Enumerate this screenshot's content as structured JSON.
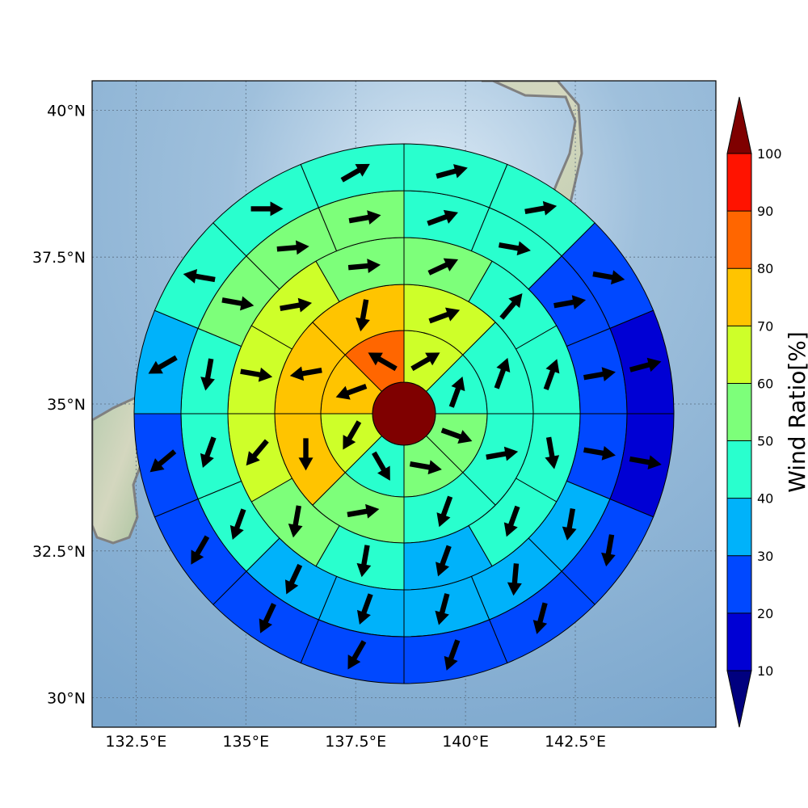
{
  "chart_data": {
    "type": "polar_grid_map",
    "map_extent": {
      "lon": [
        131.5,
        145.7
      ],
      "lat": [
        29.5,
        40.5
      ]
    },
    "lon_ticks": [
      {
        "value": 132.5,
        "label": "132.5°E"
      },
      {
        "value": 135.0,
        "label": "135°E"
      },
      {
        "value": 137.5,
        "label": "137.5°E"
      },
      {
        "value": 140.0,
        "label": "140°E"
      },
      {
        "value": 142.5,
        "label": "142.5°E"
      }
    ],
    "lat_ticks": [
      {
        "value": 30.0,
        "label": "30°N"
      },
      {
        "value": 32.5,
        "label": "32.5°N"
      },
      {
        "value": 35.0,
        "label": "35°N"
      },
      {
        "value": 37.5,
        "label": "37.5°N"
      },
      {
        "value": 40.0,
        "label": "40°N"
      }
    ],
    "grid": true,
    "center_cell": {
      "value": 100
    },
    "rings": [
      {
        "sectors": 8,
        "values": [
          65,
          45,
          55,
          55,
          45,
          65,
          75,
          85
        ]
      },
      {
        "sectors": 8,
        "values": [
          65,
          45,
          45,
          45,
          55,
          75,
          75,
          75
        ]
      },
      {
        "sectors": 12,
        "values": [
          55,
          45,
          45,
          45,
          45,
          35,
          45,
          55,
          65,
          65,
          65,
          55
        ]
      },
      {
        "sectors": 16,
        "values": [
          45,
          45,
          25,
          25,
          25,
          35,
          35,
          35,
          35,
          35,
          45,
          45,
          45,
          55,
          55,
          55
        ]
      },
      {
        "sectors": 16,
        "values": [
          45,
          45,
          25,
          15,
          15,
          25,
          25,
          25,
          25,
          25,
          25,
          25,
          35,
          45,
          45,
          45
        ]
      }
    ],
    "wind_arrows": [
      [
        60,
        20,
        110,
        100,
        150,
        210,
        250,
        300
      ],
      [
        70,
        20,
        80,
        200,
        80,
        180,
        260,
        190
      ],
      [
        65,
        40,
        20,
        170,
        200,
        200,
        190,
        190,
        220,
        100,
        80,
        85
      ],
      [
        70,
        100,
        80,
        80,
        100,
        190,
        185,
        195,
        200,
        205,
        200,
        200,
        190,
        100,
        85,
        80
      ],
      [
        75,
        80,
        100,
        75,
        100,
        190,
        195,
        200,
        210,
        205,
        210,
        230,
        240,
        280,
        90,
        60
      ]
    ],
    "colorbar": {
      "label": "Wind Ratio[%]",
      "ticks": [
        "10",
        "20",
        "30",
        "40",
        "50",
        "60",
        "70",
        "80",
        "90",
        "100"
      ],
      "levels": [
        10,
        20,
        30,
        40,
        50,
        60,
        70,
        80,
        90,
        100
      ],
      "colors": [
        "#0000d4",
        "#0048ff",
        "#00b2fa",
        "#29ffce",
        "#7dff7a",
        "#ceff29",
        "#ffc400",
        "#ff6600",
        "#ff1300"
      ],
      "under_color": "#00007f",
      "over_color": "#7f0000",
      "extend": "both"
    }
  }
}
